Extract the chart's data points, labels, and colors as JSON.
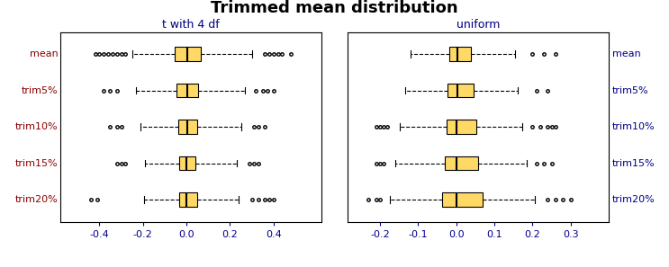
{
  "title": "Trimmed mean distribution",
  "title_fontsize": 13,
  "panel_titles": [
    "t with 4 df",
    "uniform"
  ],
  "panel_title_color": "#000080",
  "row_labels": [
    "mean",
    "trim5%",
    "trim10%",
    "trim15%",
    "trim20%"
  ],
  "row_label_color": "#8B0000",
  "right_label_color": "#00008B",
  "box_facecolor": "#FFD966",
  "box_edgecolor": "#000000",
  "median_color": "#000000",
  "whisker_color": "#000000",
  "flier_color": "#000000",
  "t4_xlim": [
    -0.58,
    0.62
  ],
  "t4_xticks": [
    -0.4,
    -0.2,
    0.0,
    0.2,
    0.4
  ],
  "unif_xlim": [
    -0.285,
    0.4
  ],
  "unif_xticks": [
    -0.2,
    -0.1,
    0.0,
    0.1,
    0.2,
    0.3
  ],
  "tick_color": "#00008B",
  "tick_fontsize": 8,
  "t4_data": [
    {
      "q1": -0.055,
      "median": 0.005,
      "q3": 0.065,
      "whislo": -0.25,
      "whishi": 0.3,
      "fliers_lo": [
        -0.42,
        -0.4,
        -0.38,
        -0.36,
        -0.34,
        -0.32,
        -0.3,
        -0.28
      ],
      "fliers_hi": [
        0.36,
        0.38,
        0.4,
        0.42,
        0.44,
        0.48
      ]
    },
    {
      "q1": -0.045,
      "median": 0.003,
      "q3": 0.055,
      "whislo": -0.23,
      "whishi": 0.27,
      "fliers_lo": [
        -0.38,
        -0.35,
        -0.32
      ],
      "fliers_hi": [
        0.32,
        0.35,
        0.37,
        0.4
      ]
    },
    {
      "q1": -0.038,
      "median": 0.002,
      "q3": 0.048,
      "whislo": -0.21,
      "whishi": 0.25,
      "fliers_lo": [
        -0.35,
        -0.32,
        -0.3
      ],
      "fliers_hi": [
        0.31,
        0.33,
        0.36
      ]
    },
    {
      "q1": -0.033,
      "median": 0.001,
      "q3": 0.043,
      "whislo": -0.19,
      "whishi": 0.23,
      "fliers_lo": [
        -0.32,
        -0.3,
        -0.28
      ],
      "fliers_hi": [
        0.29,
        0.31,
        0.33
      ]
    },
    {
      "q1": -0.033,
      "median": 0.0,
      "q3": 0.048,
      "whislo": -0.195,
      "whishi": 0.24,
      "fliers_lo": [
        -0.44,
        -0.41
      ],
      "fliers_hi": [
        0.3,
        0.33,
        0.36,
        0.38,
        0.4
      ]
    }
  ],
  "unif_data": [
    {
      "q1": -0.018,
      "median": 0.003,
      "q3": 0.038,
      "whislo": -0.12,
      "whishi": 0.155,
      "fliers_lo": [],
      "fliers_hi": [
        0.2,
        0.23,
        0.26
      ]
    },
    {
      "q1": -0.022,
      "median": 0.002,
      "q3": 0.045,
      "whislo": -0.135,
      "whishi": 0.162,
      "fliers_lo": [],
      "fliers_hi": [
        0.21,
        0.24
      ]
    },
    {
      "q1": -0.026,
      "median": 0.001,
      "q3": 0.052,
      "whislo": -0.148,
      "whishi": 0.172,
      "fliers_lo": [
        -0.21,
        -0.2,
        -0.19,
        -0.18
      ],
      "fliers_hi": [
        0.2,
        0.22,
        0.24,
        0.25,
        0.26
      ]
    },
    {
      "q1": -0.03,
      "median": 0.0,
      "q3": 0.058,
      "whislo": -0.16,
      "whishi": 0.185,
      "fliers_lo": [
        -0.21,
        -0.2,
        -0.19
      ],
      "fliers_hi": [
        0.21,
        0.23,
        0.25
      ]
    },
    {
      "q1": -0.036,
      "median": 0.0,
      "q3": 0.068,
      "whislo": -0.175,
      "whishi": 0.205,
      "fliers_lo": [
        -0.23,
        -0.21,
        -0.2
      ],
      "fliers_hi": [
        0.24,
        0.26,
        0.28,
        0.3
      ]
    }
  ]
}
